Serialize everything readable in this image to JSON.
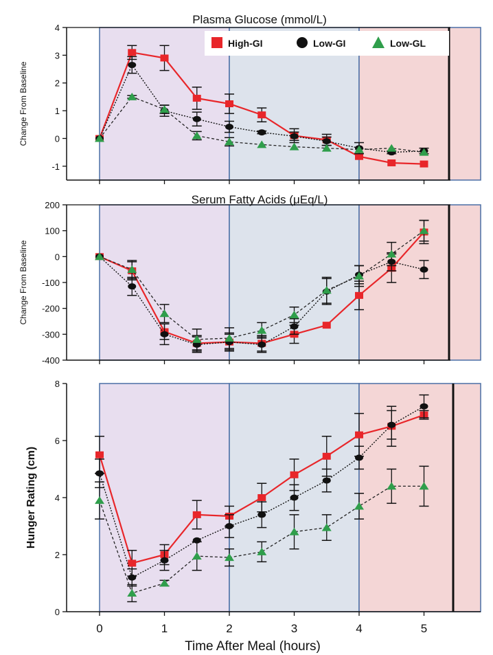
{
  "chart_data": [
    {
      "type": "line",
      "title": "Plasma Glucose (mmol/L)",
      "ylabel": "Change From Baseline",
      "xlabel": "",
      "ylim": [
        -1.5,
        4
      ],
      "yticks": [
        4,
        3,
        2,
        1,
        0,
        -1
      ],
      "x": [
        0,
        0.5,
        1,
        1.5,
        2,
        2.5,
        3,
        3.5,
        4,
        4.5,
        5
      ],
      "series": [
        {
          "name": "High-GI",
          "values": [
            0,
            3.1,
            2.9,
            1.45,
            1.25,
            0.85,
            0.1,
            -0.05,
            -0.65,
            -0.88,
            -0.92
          ],
          "errors": [
            0,
            0.25,
            0.45,
            0.4,
            0.35,
            0.25,
            0.25,
            0.2,
            0,
            0,
            0
          ]
        },
        {
          "name": "Low-GI",
          "values": [
            0,
            2.65,
            1.0,
            0.7,
            0.42,
            0.22,
            0.08,
            -0.1,
            -0.35,
            -0.5,
            -0.45
          ],
          "errors": [
            0,
            0.3,
            0.2,
            0.25,
            0.2,
            0.05,
            0.15,
            0.15,
            0.2,
            0.05,
            0.1
          ]
        },
        {
          "name": "Low-GL",
          "values": [
            0,
            1.5,
            1.05,
            0.1,
            -0.12,
            -0.22,
            -0.3,
            -0.35,
            -0.4,
            -0.35,
            -0.5
          ],
          "errors": [
            0,
            0.05,
            0.15,
            0.15,
            0.15,
            0,
            0,
            0,
            0,
            0,
            0
          ]
        }
      ]
    },
    {
      "type": "line",
      "title": "Serum Fatty Acids (μEq/L)",
      "ylabel": "Change From Baseline",
      "xlabel": "",
      "ylim": [
        -400,
        200
      ],
      "yticks": [
        200,
        100,
        0,
        -100,
        -200,
        -300,
        -400
      ],
      "x": [
        0,
        0.5,
        1,
        1.5,
        2,
        2.5,
        3,
        3.5,
        4,
        4.5,
        5
      ],
      "series": [
        {
          "name": "High-GI",
          "values": [
            0,
            -55,
            -290,
            -335,
            -330,
            -335,
            -300,
            -265,
            -150,
            -45,
            95
          ],
          "errors": [
            0,
            35,
            30,
            30,
            30,
            30,
            35,
            0,
            55,
            55,
            45
          ]
        },
        {
          "name": "Low-GI",
          "values": [
            0,
            -115,
            -300,
            -340,
            -330,
            -340,
            -270,
            -135,
            -70,
            -20,
            -50
          ],
          "errors": [
            0,
            35,
            40,
            30,
            35,
            30,
            30,
            50,
            35,
            35,
            35
          ]
        },
        {
          "name": "Low-GL",
          "values": [
            0,
            -50,
            -220,
            -320,
            -315,
            -285,
            -225,
            -130,
            -75,
            10,
            100
          ],
          "errors": [
            0,
            35,
            35,
            40,
            40,
            30,
            30,
            50,
            40,
            45,
            40
          ]
        }
      ]
    },
    {
      "type": "line",
      "title": "",
      "ylabel": "Hunger Rating (cm)",
      "xlabel": "Time After Meal (hours)",
      "ylim": [
        0,
        8
      ],
      "yticks": [
        8,
        6,
        4,
        2,
        0
      ],
      "xticks": [
        "0",
        "1",
        "2",
        "3",
        "4",
        "5"
      ],
      "x": [
        0,
        0.5,
        1,
        1.5,
        2,
        2.5,
        3,
        3.5,
        4,
        4.5,
        5
      ],
      "series": [
        {
          "name": "High-GI",
          "values": [
            5.5,
            1.7,
            2.0,
            3.4,
            3.35,
            4.0,
            4.8,
            5.45,
            6.2,
            6.5,
            6.9
          ],
          "errors": [
            0.65,
            0.45,
            0.35,
            0.5,
            0.35,
            0.5,
            0.55,
            0.7,
            0.75,
            0.7,
            0.15
          ]
        },
        {
          "name": "Low-GI",
          "values": [
            4.85,
            1.2,
            1.8,
            2.5,
            3.0,
            3.4,
            4.0,
            4.6,
            5.4,
            6.55,
            7.2
          ],
          "errors": [
            0.5,
            0.3,
            0.35,
            0,
            0.4,
            0.45,
            0.45,
            0.4,
            0.4,
            0.5,
            0.4
          ]
        },
        {
          "name": "Low-GL",
          "values": [
            3.9,
            0.65,
            1.0,
            1.95,
            1.9,
            2.1,
            2.8,
            2.95,
            3.7,
            4.4,
            4.4
          ],
          "errors": [
            0.65,
            0.3,
            0.1,
            0.5,
            0.3,
            0.35,
            0.6,
            0.45,
            0.45,
            0.6,
            0.7
          ]
        }
      ]
    }
  ],
  "legend": {
    "position": "top-right",
    "items": [
      {
        "label": "High-GI",
        "marker": "square",
        "color": "#e8262a"
      },
      {
        "label": "Low-GI",
        "marker": "circle",
        "color": "#111111"
      },
      {
        "label": "Low-GL",
        "marker": "triangle",
        "color": "#2f9e4b"
      }
    ]
  },
  "colors": {
    "phase1": "#e8deef",
    "phase2": "#dde3ec",
    "phase3": "#f4d6d6",
    "phase_border": "#4a6fa5",
    "high_gi": "#e8262a",
    "low_gi": "#111111",
    "low_gl": "#2f9e4b"
  }
}
